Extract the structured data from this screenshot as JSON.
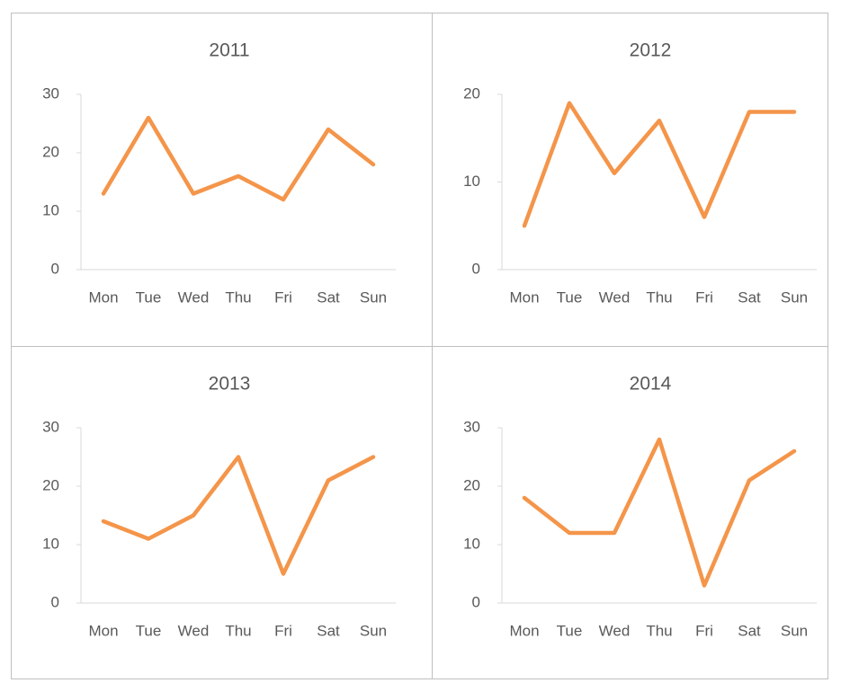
{
  "chart_data": [
    {
      "type": "line",
      "title": "2011",
      "categories": [
        "Mon",
        "Tue",
        "Wed",
        "Thu",
        "Fri",
        "Sat",
        "Sun"
      ],
      "values": [
        13,
        26,
        13,
        16,
        12,
        24,
        18
      ],
      "color": "#f4954a",
      "ylim": [
        0,
        30
      ],
      "yticks": [
        0,
        10,
        20,
        30
      ]
    },
    {
      "type": "line",
      "title": "2012",
      "categories": [
        "Mon",
        "Tue",
        "Wed",
        "Thu",
        "Fri",
        "Sat",
        "Sun"
      ],
      "values": [
        5,
        19,
        11,
        17,
        6,
        18,
        18
      ],
      "color": "#f4954a",
      "ylim": [
        0,
        20
      ],
      "yticks": [
        0,
        10,
        20
      ]
    },
    {
      "type": "line",
      "title": "2013",
      "categories": [
        "Mon",
        "Tue",
        "Wed",
        "Thu",
        "Fri",
        "Sat",
        "Sun"
      ],
      "values": [
        14,
        11,
        15,
        25,
        5,
        21,
        25
      ],
      "color": "#f4954a",
      "ylim": [
        0,
        30
      ],
      "yticks": [
        0,
        10,
        20,
        30
      ]
    },
    {
      "type": "line",
      "title": "2014",
      "categories": [
        "Mon",
        "Tue",
        "Wed",
        "Thu",
        "Fri",
        "Sat",
        "Sun"
      ],
      "values": [
        18,
        12,
        12,
        28,
        3,
        21,
        26
      ],
      "color": "#f4954a",
      "ylim": [
        0,
        30
      ],
      "yticks": [
        0,
        10,
        20,
        30
      ]
    }
  ]
}
